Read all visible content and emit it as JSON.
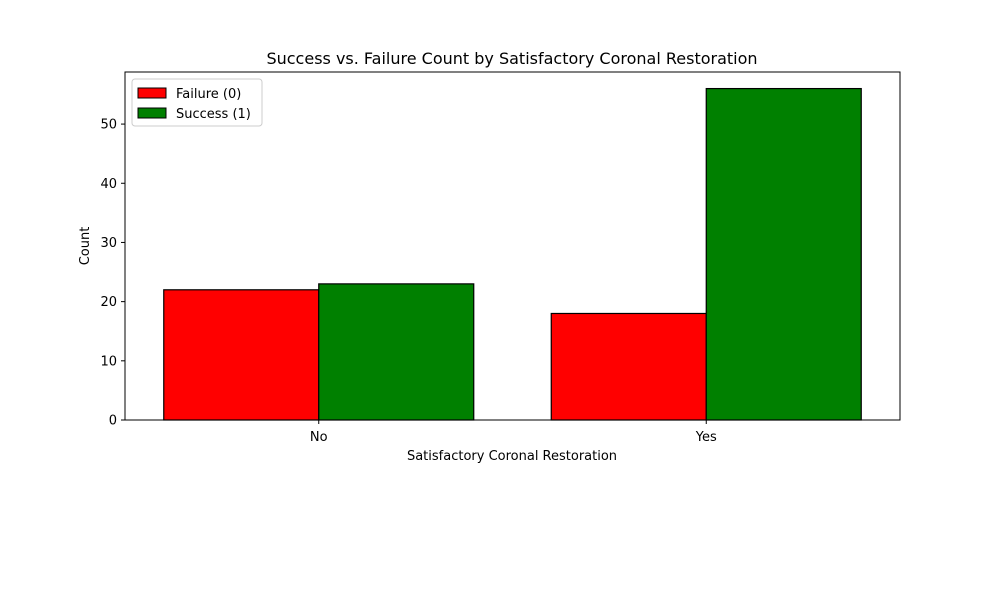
{
  "chart_data": {
    "type": "bar",
    "title": "Success vs. Failure Count by Satisfactory Coronal Restoration",
    "xlabel": "Satisfactory Coronal Restoration",
    "ylabel": "Count",
    "categories": [
      "No",
      "Yes"
    ],
    "series": [
      {
        "name": "Failure (0)",
        "values": [
          22,
          18
        ],
        "color": "#ff0000"
      },
      {
        "name": "Success (1)",
        "values": [
          23,
          56
        ],
        "color": "#008000"
      }
    ],
    "ylim": [
      0,
      58.8
    ],
    "yticks": [
      0,
      10,
      20,
      30,
      40,
      50
    ],
    "grid": false,
    "legend_position": "top-left",
    "edge_color": "#000000"
  }
}
